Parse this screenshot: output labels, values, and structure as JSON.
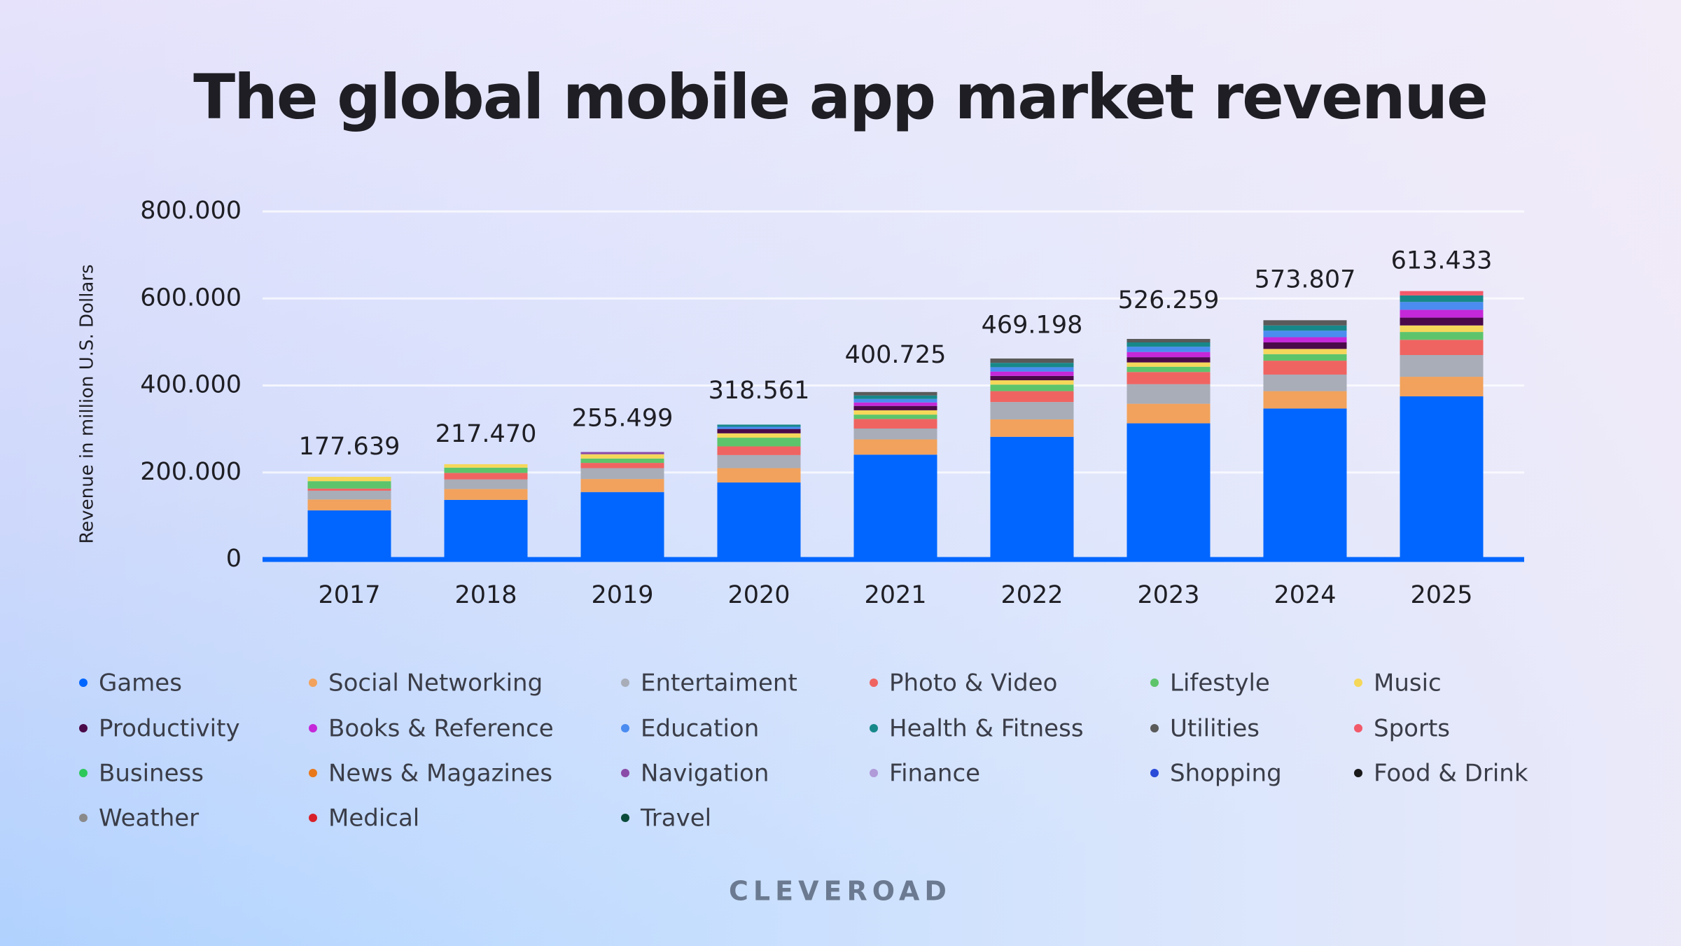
{
  "chart_data": {
    "type": "stacked-bar",
    "title": "The global mobile app market revenue",
    "y_label": "Revenue in million U.S. Dollars",
    "footer": "CLEVEROAD",
    "categories": [
      "2017",
      "2018",
      "2019",
      "2020",
      "2021",
      "2022",
      "2023",
      "2024",
      "2025"
    ],
    "ylim": [
      0,
      800000
    ],
    "yticks": [
      {
        "value": 0,
        "label": "0"
      },
      {
        "value": 200000,
        "label": "200.000"
      },
      {
        "value": 400000,
        "label": "400.000"
      },
      {
        "value": 600000,
        "label": "600.000"
      },
      {
        "value": 800000,
        "label": "800.000"
      }
    ],
    "grid": true,
    "totals": {
      "values": [
        177639,
        217470,
        255499,
        318561,
        400725,
        469198,
        526259,
        573807,
        613433
      ],
      "value_labels": [
        "177.639",
        "217.470",
        "255.499",
        "318.561",
        "400.725",
        "469.198",
        "526.259",
        "573.807",
        "613.433"
      ]
    },
    "series": [
      {
        "name": "Games",
        "color": "#0066ff",
        "values": [
          113000,
          137000,
          155000,
          177000,
          241000,
          282000,
          313000,
          347000,
          375000
        ]
      },
      {
        "name": "Social Networking",
        "color": "#f2a25c",
        "values": [
          25000,
          25000,
          30000,
          33000,
          35000,
          40000,
          45000,
          40000,
          45000
        ]
      },
      {
        "name": "Entertaiment",
        "color": "#a8adb8",
        "values": [
          20000,
          22000,
          25000,
          30000,
          25000,
          40000,
          45000,
          38000,
          50000
        ]
      },
      {
        "name": "Photo & Video",
        "color": "#ef6461",
        "values": [
          5000,
          15000,
          12000,
          20000,
          22000,
          25000,
          28000,
          32000,
          35000
        ]
      },
      {
        "name": "Lifestyle",
        "color": "#5dc46c",
        "values": [
          17000,
          12000,
          10000,
          20000,
          10000,
          15000,
          12000,
          15000,
          18000
        ]
      },
      {
        "name": "Music",
        "color": "#f5d75a",
        "values": [
          10000,
          8000,
          10000,
          10000,
          10000,
          10000,
          10000,
          12000,
          15000
        ]
      },
      {
        "name": "Productivity",
        "color": "#4a0a4a",
        "values": [
          0,
          0,
          0,
          10000,
          10000,
          10000,
          12000,
          15000,
          18000
        ]
      },
      {
        "name": "Books & Reference",
        "color": "#c428d8",
        "values": [
          0,
          0,
          0,
          0,
          8000,
          10000,
          12000,
          12000,
          18000
        ]
      },
      {
        "name": "Education",
        "color": "#4a8cf0",
        "values": [
          0,
          0,
          0,
          5000,
          8000,
          10000,
          12000,
          15000,
          18000
        ]
      },
      {
        "name": "Health & Fitness",
        "color": "#17888a",
        "values": [
          0,
          0,
          0,
          5000,
          8000,
          10000,
          10000,
          12000,
          15000
        ]
      },
      {
        "name": "Utilities",
        "color": "#5a5a5a",
        "values": [
          0,
          0,
          0,
          0,
          8000,
          10000,
          8000,
          12000,
          0
        ]
      },
      {
        "name": "Sports",
        "color": "#f25a6a",
        "values": [
          0,
          0,
          0,
          0,
          0,
          0,
          0,
          0,
          10000
        ]
      },
      {
        "name": "Business",
        "color": "#2dc85a",
        "values": [
          0,
          0,
          0,
          0,
          0,
          0,
          0,
          0,
          0
        ]
      },
      {
        "name": "News & Magazines",
        "color": "#e8781a",
        "values": [
          0,
          0,
          0,
          0,
          0,
          0,
          0,
          0,
          0
        ]
      },
      {
        "name": "Navigation",
        "color": "#8a4aa8",
        "values": [
          0,
          0,
          5000,
          0,
          0,
          0,
          0,
          0,
          0
        ]
      },
      {
        "name": "Finance",
        "color": "#b09ad8",
        "values": [
          0,
          0,
          0,
          0,
          0,
          0,
          0,
          0,
          0
        ]
      },
      {
        "name": "Shopping",
        "color": "#2a4ad8",
        "values": [
          0,
          0,
          0,
          0,
          0,
          0,
          0,
          0,
          0
        ]
      },
      {
        "name": "Food & Drink",
        "color": "#1a1a1a",
        "values": [
          0,
          0,
          0,
          0,
          0,
          0,
          0,
          0,
          0
        ]
      },
      {
        "name": "Weather",
        "color": "#8a8a8a",
        "values": [
          0,
          0,
          0,
          0,
          0,
          0,
          0,
          0,
          0
        ]
      },
      {
        "name": "Medical",
        "color": "#d8202a",
        "values": [
          0,
          0,
          0,
          0,
          0,
          0,
          0,
          0,
          0
        ]
      },
      {
        "name": "Travel",
        "color": "#0a4a3a",
        "values": [
          0,
          0,
          0,
          0,
          0,
          0,
          0,
          0,
          0
        ]
      }
    ]
  }
}
